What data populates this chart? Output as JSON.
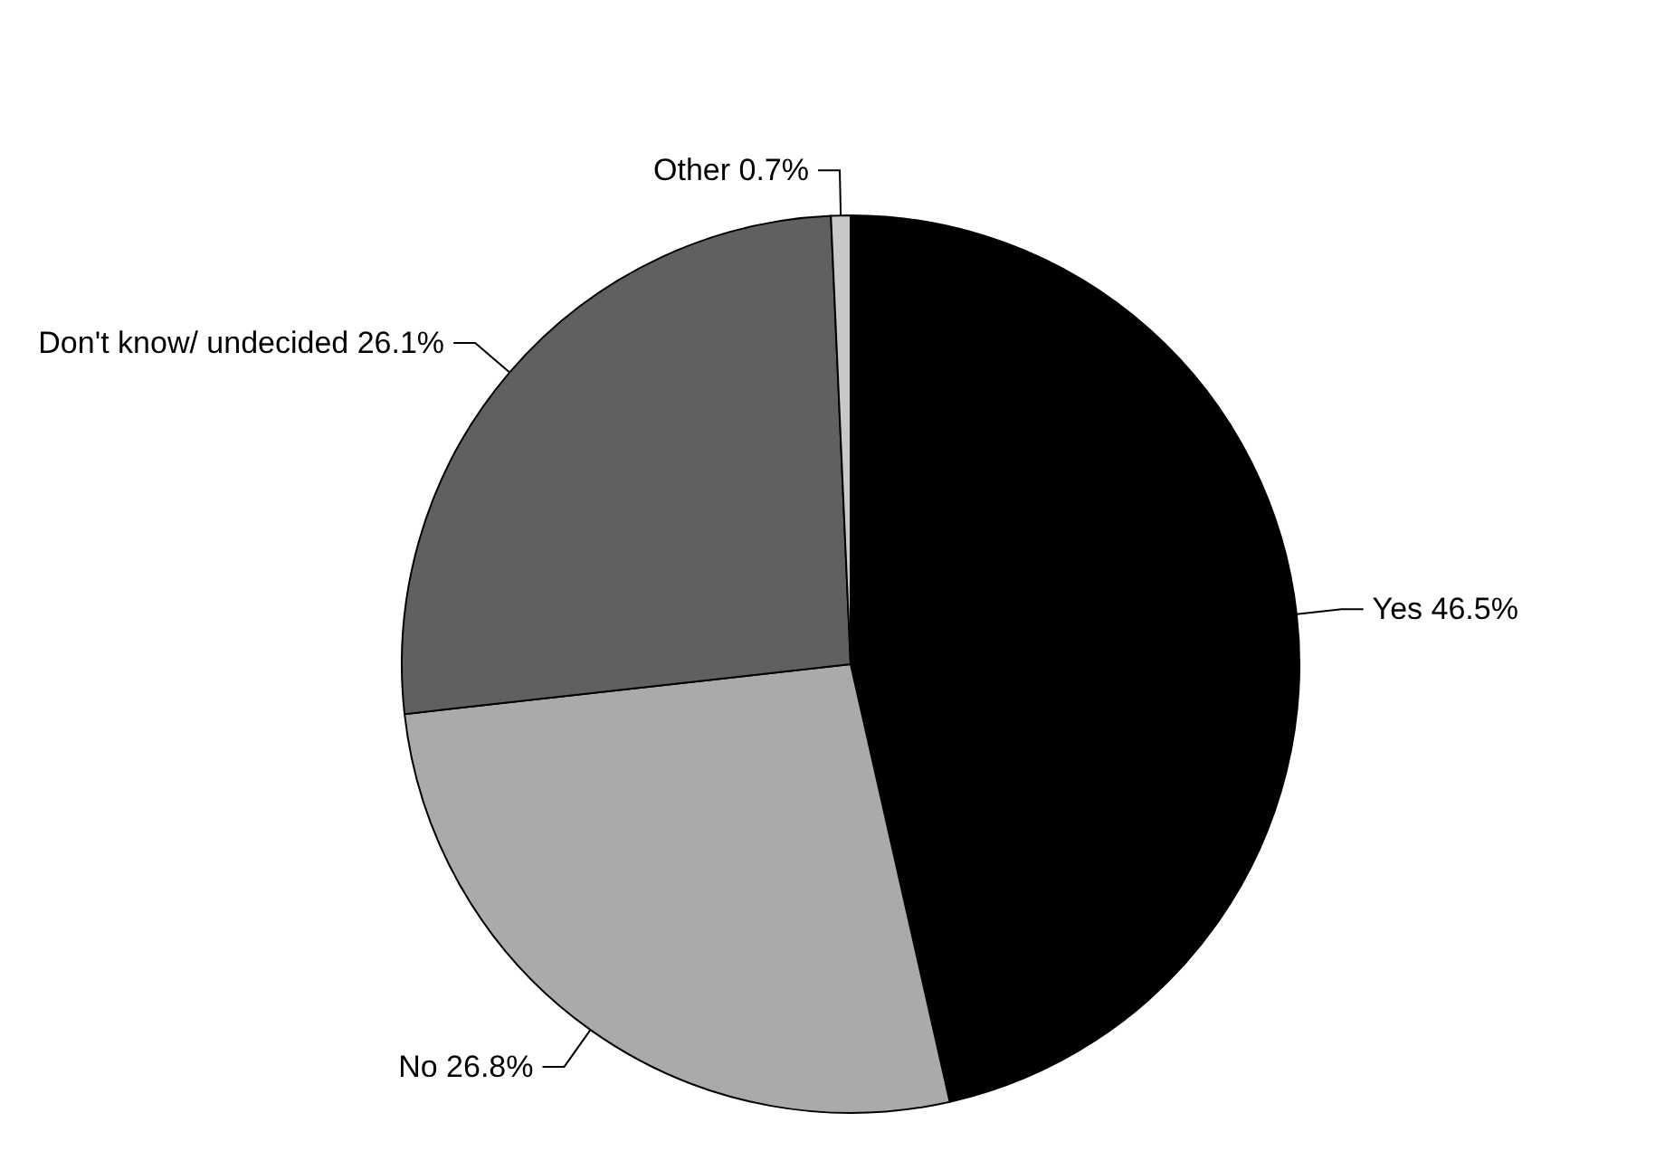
{
  "chart_data": {
    "type": "pie",
    "categories": [
      "Yes",
      "No",
      "Don't know/ undecided",
      "Other"
    ],
    "values": [
      46.5,
      26.8,
      26.1,
      0.7
    ],
    "value_labels": [
      "46.5%",
      "26.8%",
      "26.1%",
      "0.7%"
    ],
    "colors": [
      "#000000",
      "#aaaaaa",
      "#606060",
      "#c8c8c8"
    ],
    "legend": false
  }
}
